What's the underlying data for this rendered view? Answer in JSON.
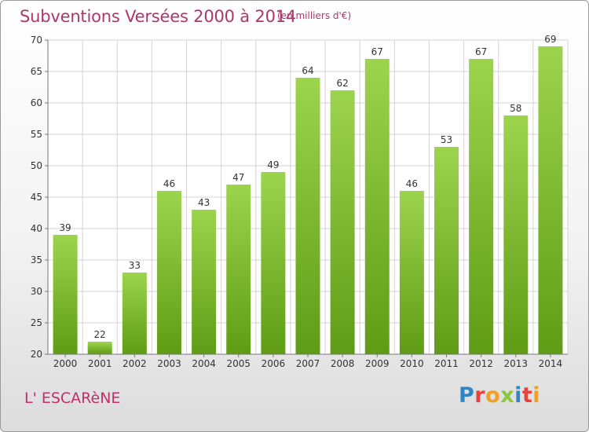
{
  "header": {
    "title": "Subventions Versées 2000 à 2014",
    "subtitle": "(en milliers d'€)"
  },
  "footer": {
    "commune": "L' ESCARèNE",
    "logo_letters": [
      "P",
      "r",
      "o",
      "x",
      "i",
      "t",
      "i"
    ],
    "logo_colors": [
      "#2e86c8",
      "#e8403a",
      "#f0a028",
      "#8cc63f",
      "#2e86c8",
      "#e8403a",
      "#f0a028"
    ]
  },
  "chart_data": {
    "type": "bar",
    "categories": [
      "2000",
      "2001",
      "2002",
      "2003",
      "2004",
      "2005",
      "2006",
      "2007",
      "2008",
      "2009",
      "2010",
      "2011",
      "2012",
      "2013",
      "2014"
    ],
    "values": [
      39,
      22,
      33,
      46,
      43,
      47,
      49,
      64,
      62,
      67,
      46,
      53,
      67,
      58,
      69
    ],
    "ylim": [
      20,
      70
    ],
    "yticks": [
      20,
      25,
      30,
      35,
      40,
      45,
      50,
      55,
      60,
      65,
      70
    ],
    "grid": true,
    "bar_color_top": "#9dd44e",
    "bar_color_bottom": "#5f9c15",
    "grid_color": "#d4d4d4"
  }
}
